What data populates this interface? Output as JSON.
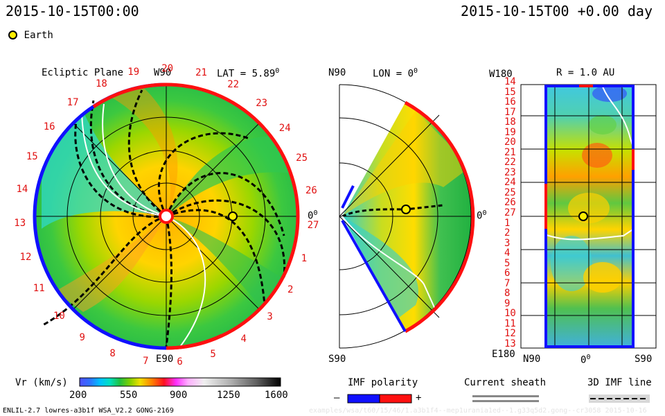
{
  "header": {
    "timestamp_left": "2015-10-15T00:00",
    "timestamp_right": "2015-10-15T00 +0.00 day",
    "legend_earth": "Earth"
  },
  "panels": {
    "ecliptic": {
      "title": "Ecliptic Plane",
      "top_label": "W90",
      "lat_label": "LAT = 5.89",
      "lat_sup": "0",
      "right_label": "0",
      "right_sup": "0",
      "bottom_label": "E90",
      "carrington_labels": [
        "19",
        "20",
        "21",
        "22",
        "23",
        "24",
        "25",
        "26",
        "27",
        "1",
        "2",
        "3",
        "4",
        "5",
        "6",
        "7",
        "8",
        "9",
        "10",
        "11",
        "12",
        "13",
        "14",
        "15",
        "16",
        "17",
        "18"
      ]
    },
    "meridional": {
      "top_label": "N90",
      "lon_label": "LON = 0",
      "lon_sup": "0",
      "right_label": "0",
      "right_sup": "0",
      "bottom_label": "S90"
    },
    "synoptic": {
      "top_left_label": "W180",
      "r_label": "R = 1.0 AU",
      "bottom_left_label": "E180",
      "bottom_labels": [
        "N90",
        "0",
        "S90"
      ],
      "bottom_zero_sup": "0",
      "row_labels": [
        "14",
        "15",
        "16",
        "17",
        "18",
        "19",
        "20",
        "21",
        "22",
        "23",
        "24",
        "25",
        "26",
        "27",
        "1",
        "2",
        "3",
        "4",
        "5",
        "6",
        "7",
        "8",
        "9",
        "10",
        "11",
        "12",
        "13"
      ]
    }
  },
  "colorbar": {
    "title": "Vr (km/s)",
    "ticks": [
      "200",
      "550",
      "900",
      "1250",
      "1600"
    ]
  },
  "imf_legend": {
    "title": "IMF polarity",
    "minus": "–",
    "plus": "+",
    "negative_color": "#1010ff",
    "positive_color": "#ff1010"
  },
  "sheath_legend": {
    "title": "Current sheath"
  },
  "imf_line_legend": {
    "title": "3D IMF line"
  },
  "footer": {
    "model_info": "ENLIL-2.7 lowres-a3b1f WSA_V2.2 GONG-2169",
    "faint_path": "examples/wsa/t60/15/46/1.a3b1f4--mep1urania1ed--1.g33q5d2.gong--cr3058    2015-10-16"
  }
}
